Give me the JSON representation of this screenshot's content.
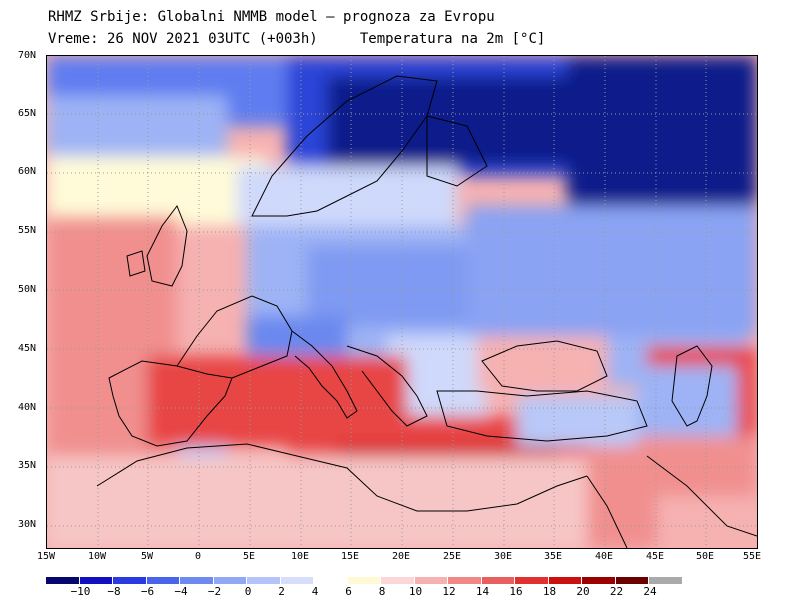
{
  "header": {
    "line1": "RHMZ Srbije: Globalni NMMB model — prognoza za Evropu",
    "line2_left": "Vreme: 26 NOV 2021 03UTC (+003h)",
    "line2_right": "Temperatura na 2m [°C]"
  },
  "map": {
    "lat_labels": [
      "70N",
      "65N",
      "60N",
      "55N",
      "50N",
      "45N",
      "40N",
      "35N",
      "30N"
    ],
    "lon_labels": [
      "15W",
      "10W",
      "5W",
      "0",
      "5E",
      "10E",
      "15E",
      "20E",
      "25E",
      "30E",
      "35E",
      "40E",
      "45E",
      "50E",
      "55E"
    ],
    "colors": {
      "arctic": "#0a1a8a",
      "very_cold": "#2a44d8",
      "cold": "#5e7df0",
      "cool": "#9db3f5",
      "mild": "#cfd9fb",
      "neutral": "#fffbd8",
      "warm_light": "#f6c6c6",
      "warm": "#f18f8f",
      "hot": "#e84545",
      "very_hot": "#cc1111",
      "extreme": "#8a0000",
      "extreme2": "#5a0000",
      "land_border": "#000000",
      "grid": "#9a9a9a"
    }
  },
  "colorbar": {
    "labels": [
      "−10",
      "−8",
      "−6",
      "−4",
      "−2",
      "0",
      "2",
      "4",
      "6",
      "8",
      "10",
      "12",
      "14",
      "16",
      "18",
      "20",
      "22",
      "24"
    ],
    "colors": [
      "#06066e",
      "#1010c0",
      "#2a3ae0",
      "#4a63ec",
      "#6e8af1",
      "#93a8f5",
      "#b5c4f8",
      "#d6defb",
      "#ffffff",
      "#fff9d4",
      "#fbd7d7",
      "#f6b1b1",
      "#f08888",
      "#e95e5e",
      "#e03030",
      "#cc1010",
      "#9a0000",
      "#6a0000",
      "#aaaaaa"
    ]
  }
}
